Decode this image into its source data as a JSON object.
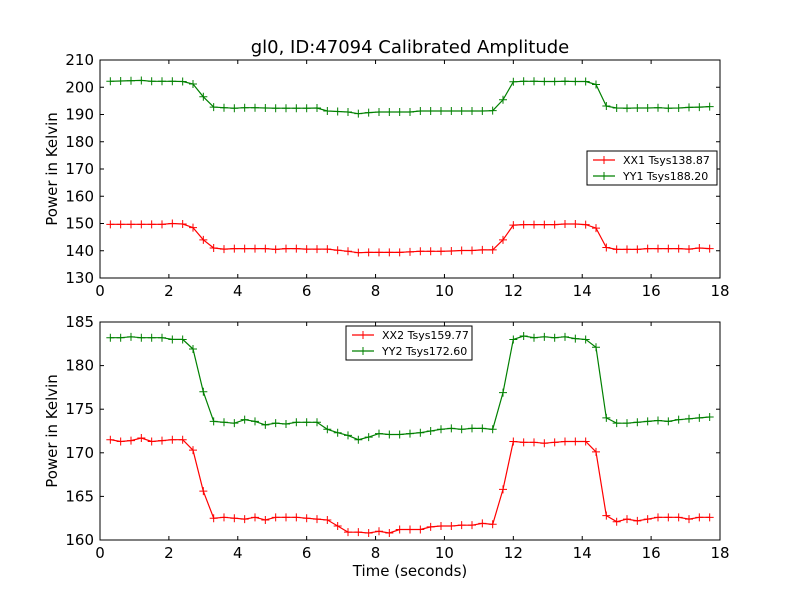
{
  "figure": {
    "title": "gl0, ID:47094 Calibrated Amplitude"
  },
  "chart_data": [
    {
      "type": "line",
      "title": "gl0, ID:47094 Calibrated Amplitude",
      "xlabel": "",
      "ylabel": "Power in Kelvin",
      "xlim": [
        0,
        18
      ],
      "ylim": [
        130,
        210
      ],
      "xticks": [
        0,
        2,
        4,
        6,
        8,
        10,
        12,
        14,
        16,
        18
      ],
      "yticks": [
        130,
        140,
        150,
        160,
        170,
        180,
        190,
        200,
        210
      ],
      "grid": false,
      "legend": "center-right",
      "x": [
        0.3,
        0.6,
        0.9,
        1.2,
        1.5,
        1.8,
        2.1,
        2.4,
        2.7,
        3.0,
        3.3,
        3.6,
        3.9,
        4.2,
        4.5,
        4.8,
        5.1,
        5.4,
        5.7,
        6.0,
        6.3,
        6.6,
        6.9,
        7.2,
        7.5,
        7.8,
        8.1,
        8.4,
        8.7,
        9.0,
        9.3,
        9.6,
        9.9,
        10.2,
        10.5,
        10.8,
        11.1,
        11.4,
        11.7,
        12.0,
        12.3,
        12.6,
        12.9,
        13.2,
        13.5,
        13.8,
        14.1,
        14.4,
        14.7,
        15.0,
        15.3,
        15.6,
        15.9,
        16.2,
        16.5,
        16.8,
        17.1,
        17.4,
        17.7
      ],
      "series": [
        {
          "name": "XX1 Tsys138.87",
          "color": "#ff0000",
          "values": [
            149.7,
            149.7,
            149.7,
            149.7,
            149.7,
            149.7,
            150.0,
            149.8,
            148.5,
            144.0,
            141.0,
            140.6,
            140.8,
            140.8,
            140.8,
            140.8,
            140.5,
            140.8,
            140.8,
            140.6,
            140.6,
            140.6,
            140.2,
            139.8,
            139.3,
            139.4,
            139.4,
            139.4,
            139.4,
            139.6,
            139.8,
            139.8,
            139.8,
            139.9,
            140.1,
            140.1,
            140.3,
            140.3,
            144.0,
            149.4,
            149.6,
            149.6,
            149.6,
            149.6,
            149.8,
            149.8,
            149.6,
            148.3,
            141.2,
            140.5,
            140.5,
            140.5,
            140.8,
            140.8,
            140.8,
            140.8,
            140.6,
            141.0,
            140.8
          ]
        },
        {
          "name": "YY1 Tsys188.20",
          "color": "#008000",
          "values": [
            202.2,
            202.3,
            202.4,
            202.5,
            202.2,
            202.2,
            202.2,
            202.1,
            201.2,
            196.5,
            192.7,
            192.5,
            192.3,
            192.5,
            192.5,
            192.4,
            192.3,
            192.3,
            192.3,
            192.3,
            192.4,
            191.3,
            191.1,
            190.9,
            190.3,
            190.7,
            190.9,
            190.9,
            190.9,
            190.9,
            191.3,
            191.3,
            191.3,
            191.3,
            191.3,
            191.3,
            191.3,
            191.4,
            195.4,
            202.0,
            202.2,
            202.2,
            202.1,
            202.1,
            202.2,
            202.1,
            202.1,
            201.0,
            193.1,
            192.4,
            192.3,
            192.4,
            192.4,
            192.5,
            192.3,
            192.4,
            192.6,
            192.7,
            192.9
          ]
        }
      ]
    },
    {
      "type": "line",
      "title": "",
      "xlabel": "Time (seconds)",
      "ylabel": "Power in Kelvin",
      "xlim": [
        0,
        18
      ],
      "ylim": [
        160,
        185
      ],
      "xticks": [
        0,
        2,
        4,
        6,
        8,
        10,
        12,
        14,
        16,
        18
      ],
      "yticks": [
        160,
        165,
        170,
        175,
        180,
        185
      ],
      "grid": false,
      "legend": "top-center",
      "x": [
        0.3,
        0.6,
        0.9,
        1.2,
        1.5,
        1.8,
        2.1,
        2.4,
        2.7,
        3.0,
        3.3,
        3.6,
        3.9,
        4.2,
        4.5,
        4.8,
        5.1,
        5.4,
        5.7,
        6.0,
        6.3,
        6.6,
        6.9,
        7.2,
        7.5,
        7.8,
        8.1,
        8.4,
        8.7,
        9.0,
        9.3,
        9.6,
        9.9,
        10.2,
        10.5,
        10.8,
        11.1,
        11.4,
        11.7,
        12.0,
        12.3,
        12.6,
        12.9,
        13.2,
        13.5,
        13.8,
        14.1,
        14.4,
        14.7,
        15.0,
        15.3,
        15.6,
        15.9,
        16.2,
        16.5,
        16.8,
        17.1,
        17.4,
        17.7
      ],
      "series": [
        {
          "name": "XX2 Tsys159.77",
          "color": "#ff0000",
          "values": [
            171.5,
            171.3,
            171.4,
            171.7,
            171.3,
            171.4,
            171.5,
            171.5,
            170.3,
            165.6,
            162.5,
            162.6,
            162.5,
            162.4,
            162.6,
            162.3,
            162.6,
            162.6,
            162.6,
            162.5,
            162.4,
            162.3,
            161.6,
            160.9,
            160.9,
            160.8,
            161.0,
            160.8,
            161.2,
            161.2,
            161.2,
            161.5,
            161.6,
            161.6,
            161.7,
            161.7,
            161.9,
            161.8,
            165.8,
            171.3,
            171.2,
            171.2,
            171.1,
            171.2,
            171.3,
            171.3,
            171.3,
            170.1,
            162.8,
            162.1,
            162.4,
            162.2,
            162.4,
            162.6,
            162.6,
            162.6,
            162.4,
            162.6,
            162.6
          ]
        },
        {
          "name": "YY2 Tsys172.60",
          "color": "#008000",
          "values": [
            183.2,
            183.2,
            183.3,
            183.2,
            183.2,
            183.2,
            183.0,
            183.0,
            181.9,
            177.0,
            173.6,
            173.5,
            173.4,
            173.8,
            173.6,
            173.2,
            173.4,
            173.3,
            173.5,
            173.5,
            173.5,
            172.7,
            172.3,
            172.0,
            171.5,
            171.8,
            172.2,
            172.1,
            172.1,
            172.2,
            172.3,
            172.5,
            172.7,
            172.8,
            172.7,
            172.8,
            172.8,
            172.7,
            176.9,
            183.0,
            183.4,
            183.2,
            183.3,
            183.2,
            183.3,
            183.1,
            183.0,
            182.1,
            174.0,
            173.4,
            173.4,
            173.5,
            173.6,
            173.7,
            173.6,
            173.8,
            173.9,
            174.0,
            174.1
          ]
        }
      ]
    }
  ]
}
